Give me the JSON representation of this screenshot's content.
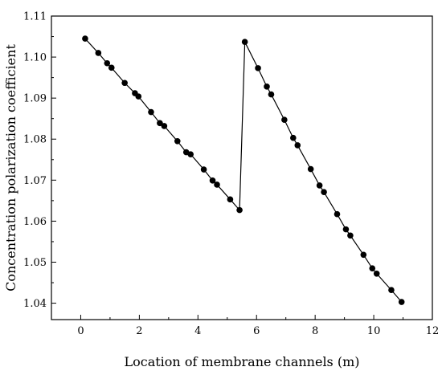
{
  "chart_data": {
    "type": "line",
    "title": "",
    "xlabel": "Location of membrane channels (m)",
    "ylabel": "Concentration polarization coefficient",
    "xlim": [
      -1,
      12
    ],
    "ylim": [
      1.036,
      1.11
    ],
    "xticks": [
      0,
      2,
      4,
      6,
      8,
      10,
      12
    ],
    "yticks": [
      1.04,
      1.05,
      1.06,
      1.07,
      1.08,
      1.09,
      1.1,
      1.11
    ],
    "xtick_labels": [
      "0",
      "2",
      "4",
      "6",
      "8",
      "10",
      "12"
    ],
    "ytick_labels": [
      "1.04",
      "1.05",
      "1.06",
      "1.07",
      "1.08",
      "1.09",
      "1.10",
      "1.11"
    ],
    "grid": false,
    "legend": "none",
    "marker": "filled-circle",
    "color": "#000000",
    "series": [
      {
        "x": [
          0.15,
          0.6,
          0.9,
          1.05,
          1.5,
          1.85,
          1.97,
          2.4,
          2.7,
          2.85,
          3.3,
          3.6,
          3.75,
          4.2,
          4.5,
          4.65,
          5.1,
          5.42,
          5.6,
          6.05,
          6.35,
          6.5,
          6.95,
          7.25,
          7.4,
          7.85,
          8.15,
          8.3,
          8.75,
          9.05,
          9.2,
          9.65,
          9.95,
          10.1,
          10.6,
          10.95
        ],
        "y": [
          1.1045,
          1.101,
          1.0985,
          1.0974,
          1.0937,
          1.0912,
          1.0904,
          1.0866,
          1.0839,
          1.0832,
          1.0795,
          1.0768,
          1.0763,
          1.0726,
          1.0699,
          1.0689,
          1.0653,
          1.0627,
          1.1037,
          1.0973,
          1.0928,
          1.0909,
          1.0847,
          1.0803,
          1.0785,
          1.0727,
          1.0687,
          1.0671,
          1.0617,
          1.058,
          1.0565,
          1.0518,
          1.0485,
          1.0472,
          1.0432,
          1.0403
        ]
      }
    ]
  }
}
